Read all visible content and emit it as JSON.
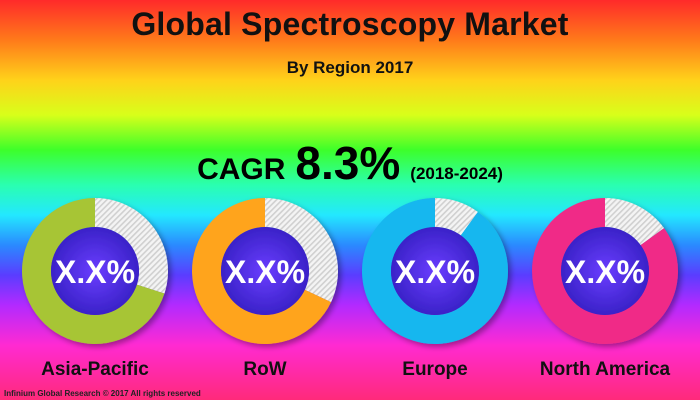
{
  "title": "Global Spectroscopy Market",
  "subtitle": "By Region 2017",
  "cagr": {
    "label": "CAGR",
    "value": "8.3%",
    "period": "(2018-2024)"
  },
  "chart_data": {
    "type": "donut",
    "center_label": "X.X%",
    "segments": [
      {
        "name": "Asia-Pacific",
        "share": 0.3,
        "color": "#a7c535"
      },
      {
        "name": "RoW",
        "share": 0.32,
        "color": "#ffa41c"
      },
      {
        "name": "Europe",
        "share": 0.1,
        "color": "#14b7ef"
      },
      {
        "name": "North America",
        "share": 0.15,
        "color": "#f02a87"
      }
    ],
    "hatch_color": "#d0d0d0"
  },
  "footer": "Infinium Global Research © 2017 All rights reserved"
}
